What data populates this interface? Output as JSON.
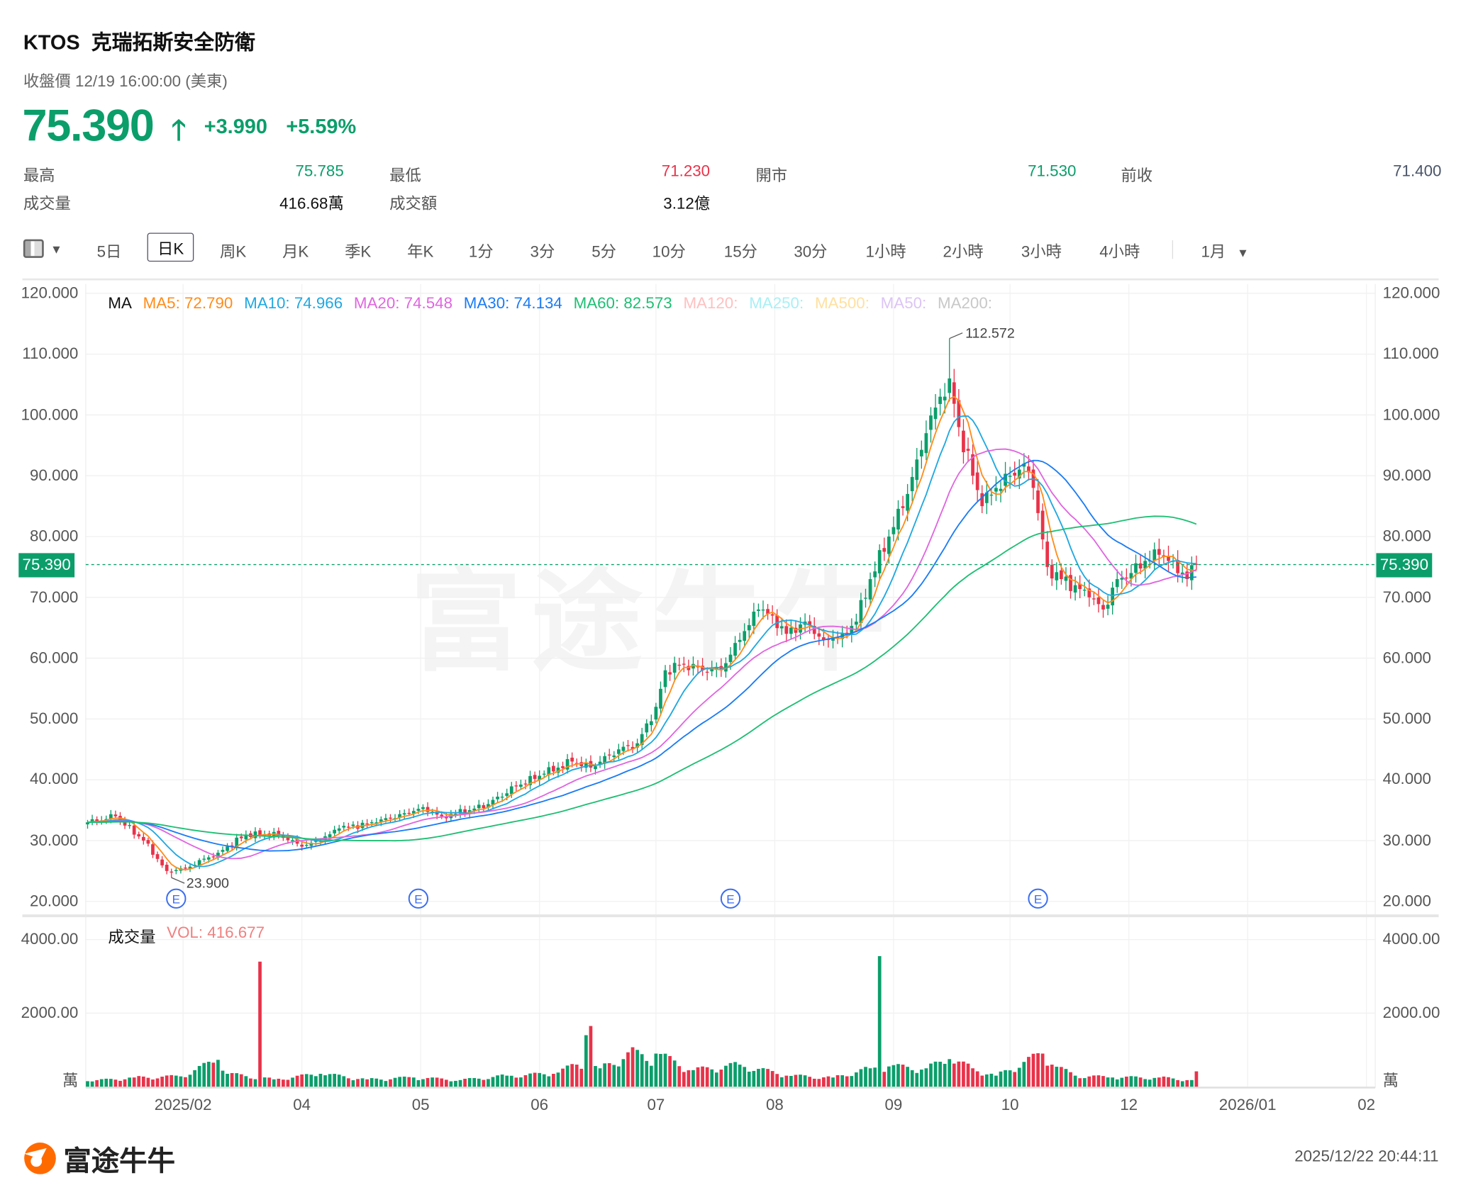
{
  "header": {
    "ticker": "KTOS",
    "name": "克瑞拓斯安全防衛",
    "close_label": "收盤價 12/19 16:00:00 (美東)",
    "price": "75.390",
    "change": "+3.990",
    "change_pct": "+5.59%",
    "direction": "up"
  },
  "stats": [
    {
      "label": "最高",
      "value": "75.785",
      "color": "#0b9e6b"
    },
    {
      "label": "最低",
      "value": "71.230",
      "color": "#e8334a"
    },
    {
      "label": "開市",
      "value": "71.530",
      "color": "#0b9e6b"
    },
    {
      "label": "前收",
      "value": "71.400",
      "color": "#4a5568"
    },
    {
      "label": "成交量",
      "value": "416.68萬",
      "color": "#111111"
    },
    {
      "label": "成交額",
      "value": "3.12億",
      "color": "#111111"
    }
  ],
  "toolbar": {
    "layout_icon": "panel-layout-icon",
    "periods": [
      "5日",
      "日K",
      "周K",
      "月K",
      "季K",
      "年K",
      "1分",
      "3分",
      "5分",
      "10分",
      "15分",
      "30分",
      "1小時",
      "2小時",
      "3小時",
      "4小時"
    ],
    "selected": "日K",
    "range": "1月"
  },
  "legend": {
    "ma_label": "MA",
    "items": [
      {
        "text": "MA5: 72.790",
        "color": "#ff8c1a"
      },
      {
        "text": "MA10: 74.966",
        "color": "#1fa8e0"
      },
      {
        "text": "MA20: 74.548",
        "color": "#e066e0"
      },
      {
        "text": "MA30: 74.134",
        "color": "#1a7cf5"
      },
      {
        "text": "MA60: 82.573",
        "color": "#1dbf73"
      },
      {
        "text": "MA120:",
        "color": "#ffc0c0"
      },
      {
        "text": "MA250:",
        "color": "#a8f0f5"
      },
      {
        "text": "MA500:",
        "color": "#ffe0a0"
      },
      {
        "text": "MA50:",
        "color": "#dcc4f5"
      },
      {
        "text": "MA200:",
        "color": "#c8c8c8"
      }
    ],
    "vol_label": "成交量",
    "vol_value": "VOL: 416.677"
  },
  "chart_data": {
    "type": "candlestick",
    "y_ticks": [
      "120.000",
      "110.000",
      "100.000",
      "90.000",
      "80.000",
      "70.000",
      "60.000",
      "50.000",
      "40.000",
      "30.000",
      "20.000"
    ],
    "ylim": [
      20,
      120
    ],
    "x_ticks": [
      {
        "label": "2025/02",
        "index": 20.5
      },
      {
        "label": "04",
        "index": 46
      },
      {
        "label": "05",
        "index": 71.5
      },
      {
        "label": "06",
        "index": 97
      },
      {
        "label": "07",
        "index": 122
      },
      {
        "label": "08",
        "index": 147.5
      },
      {
        "label": "09",
        "index": 173
      },
      {
        "label": "10",
        "index": 198
      },
      {
        "label": "12",
        "index": 223.5
      },
      {
        "label": "2026/01",
        "index": 249
      },
      {
        "label": "02",
        "index": 274.5
      }
    ],
    "last_price": 75.39,
    "last_price_label": "75.390",
    "high_marker": {
      "index": 185,
      "value": 112.572,
      "label": "112.572"
    },
    "low_marker": {
      "index": 18,
      "value": 23.9,
      "label": "23.900"
    },
    "earnings_markers": {
      "label": "E",
      "indices": [
        19,
        71,
        138,
        204
      ]
    },
    "close_points": [
      [
        0,
        33
      ],
      [
        6,
        34
      ],
      [
        12,
        30
      ],
      [
        17,
        25
      ],
      [
        21,
        25.5
      ],
      [
        28,
        28
      ],
      [
        34,
        31
      ],
      [
        41,
        31
      ],
      [
        46,
        29
      ],
      [
        50,
        30
      ],
      [
        54,
        32
      ],
      [
        62,
        33
      ],
      [
        68,
        34.5
      ],
      [
        72,
        35.5
      ],
      [
        76,
        34
      ],
      [
        82,
        35
      ],
      [
        86,
        36
      ],
      [
        92,
        39
      ],
      [
        98,
        41
      ],
      [
        104,
        43
      ],
      [
        108,
        42
      ],
      [
        114,
        45
      ],
      [
        118,
        46
      ],
      [
        122,
        52
      ],
      [
        124,
        58
      ],
      [
        128,
        59
      ],
      [
        132,
        58
      ],
      [
        136,
        58
      ],
      [
        140,
        63
      ],
      [
        144,
        68
      ],
      [
        147,
        67
      ],
      [
        150,
        64
      ],
      [
        154,
        66
      ],
      [
        158,
        63
      ],
      [
        162,
        64
      ],
      [
        165,
        66
      ],
      [
        168,
        73
      ],
      [
        172,
        80
      ],
      [
        176,
        87
      ],
      [
        180,
        97
      ],
      [
        183,
        103
      ],
      [
        185,
        106
      ],
      [
        187,
        98
      ],
      [
        190,
        90
      ],
      [
        192,
        85
      ],
      [
        195,
        88
      ],
      [
        198,
        90
      ],
      [
        201,
        92
      ],
      [
        203,
        88
      ],
      [
        206,
        75
      ],
      [
        209,
        73
      ],
      [
        212,
        72
      ],
      [
        215,
        70
      ],
      [
        218,
        68
      ],
      [
        221,
        73
      ],
      [
        224,
        74
      ],
      [
        227,
        76
      ],
      [
        230,
        77
      ],
      [
        233,
        76
      ],
      [
        236,
        73
      ],
      [
        238,
        75.39
      ]
    ],
    "volume": {
      "unit": "萬",
      "y_ticks": [
        "4000.00",
        "2000.00"
      ],
      "ylim": [
        0,
        4000
      ],
      "points": [
        [
          0,
          150
        ],
        [
          10,
          250
        ],
        [
          20,
          280
        ],
        [
          28,
          730
        ],
        [
          30,
          350
        ],
        [
          37,
          3400
        ],
        [
          40,
          200
        ],
        [
          50,
          350
        ],
        [
          60,
          200
        ],
        [
          70,
          250
        ],
        [
          80,
          180
        ],
        [
          90,
          300
        ],
        [
          100,
          350
        ],
        [
          105,
          600
        ],
        [
          107,
          1400
        ],
        [
          108,
          1650
        ],
        [
          110,
          500
        ],
        [
          118,
          1000
        ],
        [
          120,
          700
        ],
        [
          122,
          900
        ],
        [
          130,
          450
        ],
        [
          140,
          600
        ],
        [
          150,
          300
        ],
        [
          160,
          250
        ],
        [
          168,
          500
        ],
        [
          170,
          3550
        ],
        [
          172,
          550
        ],
        [
          180,
          500
        ],
        [
          185,
          750
        ],
        [
          190,
          500
        ],
        [
          195,
          300
        ],
        [
          205,
          900
        ],
        [
          207,
          600
        ],
        [
          212,
          300
        ],
        [
          220,
          250
        ],
        [
          230,
          250
        ],
        [
          237,
          180
        ],
        [
          238,
          417
        ]
      ]
    },
    "colors": {
      "up": "#0b9e6b",
      "down": "#e8334a"
    }
  },
  "watermark": "富途牛牛",
  "footer": {
    "brand": "富途牛牛",
    "timestamp": "2025/12/22 20:44:11"
  }
}
